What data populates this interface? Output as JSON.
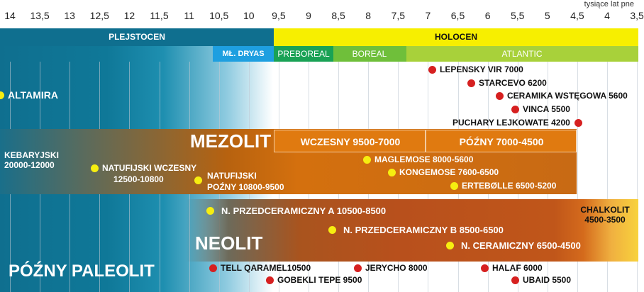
{
  "axis": {
    "unit": "tysiące lat pne",
    "ticks": [
      "14",
      "13,5",
      "13",
      "12,5",
      "12",
      "11,5",
      "11",
      "10,5",
      "10",
      "9,5",
      "9",
      "8,5",
      "8",
      "7,5",
      "7",
      "6,5",
      "6",
      "5,5",
      "5",
      "4,5",
      "4",
      "3,5"
    ]
  },
  "epochs": {
    "pleistocene": "PLEJSTOCEN",
    "holocene": "HOLOCEN"
  },
  "stages": {
    "younger_dryas": "MŁ. DRYAS",
    "preboreal": "PREBOREAL",
    "boreal": "BOREAL",
    "atlantic": "ATLANTIC"
  },
  "periods": {
    "mesolithic": "MEZOLIT",
    "mesolithic_early": "WCZESNY 9500-7000",
    "mesolithic_late": "PÓŹNY 7000-4500",
    "neolithic": "NEOLIT",
    "chalcolithic_l1": "CHALKOLIT",
    "chalcolithic_l2": "4500-3500",
    "late_paleolithic": "PÓŹNY PALEOLIT"
  },
  "cultures": {
    "altamira": "ALTAMIRA",
    "kebaran_l1": "KEBARYJSKI",
    "kebaran_l2": "20000-12000",
    "natufian_early_l1": "NATUFIJSKI WCZESNY",
    "natufian_early_l2": "12500-10800",
    "natufian_late_l1": "NATUFIJSKI",
    "natufian_late_l2": "POŹNY 10800-9500",
    "lepenski_vir": "LEPENSKY VIR 7000",
    "starcevo": "STARCEVO 6200",
    "linear_pottery": "CERAMIKA WSTĘGOWA 5600",
    "vinca": "VINCA 5500",
    "funnel_beaker": "PUCHARY LEJKOWATE 4200",
    "maglemose": "MAGLEMOSE 8000-5600",
    "kongemose": "KONGEMOSE 7600-6500",
    "ertebolle": "ERTEBØLLE 6500-5200",
    "ppna": "N. PRZEDCERAMICZNY A 10500-8500",
    "ppnb": "N. PRZEDCERAMICZNY B 8500-6500",
    "pottery_neolithic": "N. CERAMICZNY 6500-4500",
    "tell_qaramel": "TELL QARAMEL10500",
    "gobekli_tepe": "GOBEKLI TEPE 9500",
    "jericho": "JERYCHO 8000",
    "halaf": "HALAF 6000",
    "ubaid": "UBAID 5500"
  },
  "colors": {
    "pleistocene": "#0f6f8f",
    "holocene": "#f7ef00",
    "younger_dryas": "#1e9fe0",
    "preboreal": "#19a255",
    "boreal": "#6fbf3a",
    "atlantic": "#a8d13a",
    "mesolithic": "#d4700e",
    "neolithic": "#b8501c",
    "chalcolithic": "#f5c23a",
    "site_red": "#d62020",
    "site_yellow": "#f6ee10"
  }
}
